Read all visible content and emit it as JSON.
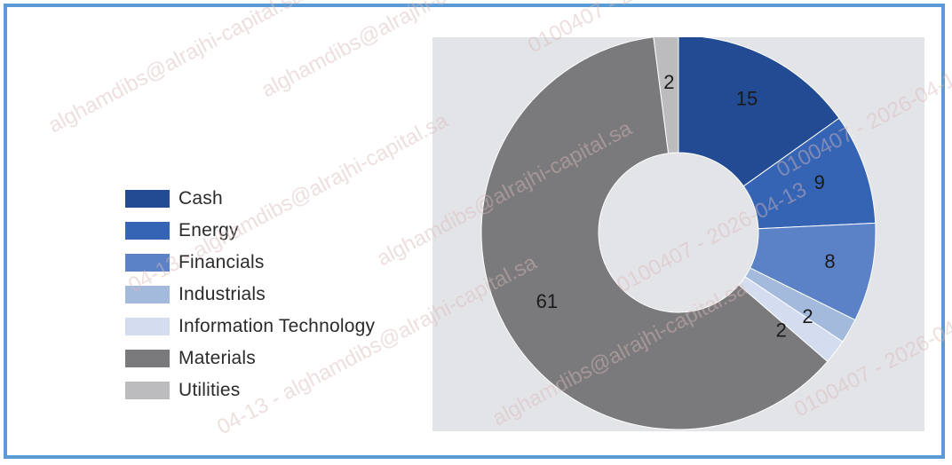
{
  "chart_data": {
    "type": "pie",
    "donut": true,
    "title": "",
    "legend_position": "left",
    "categories": [
      "Cash",
      "Energy",
      "Financials",
      "Industrials",
      "Information Technology",
      "Materials",
      "Utilities"
    ],
    "values": [
      15,
      9,
      8,
      2,
      2,
      61,
      2
    ],
    "colors": [
      "#234b93",
      "#3564b4",
      "#5b82c6",
      "#a3badd",
      "#d3ddef",
      "#7a7a7c",
      "#bcbcbe"
    ]
  },
  "watermark": {
    "texts": [
      "alghamdibs@alrajhi-capital.sa",
      "0100407 - 2026-04-13",
      "04-13 - alghamdibs@alrajhi-capital.sa"
    ],
    "color": "#d9b8b8"
  },
  "frame_color": "#5b9bd5",
  "plot_background": "#e3e4e8"
}
